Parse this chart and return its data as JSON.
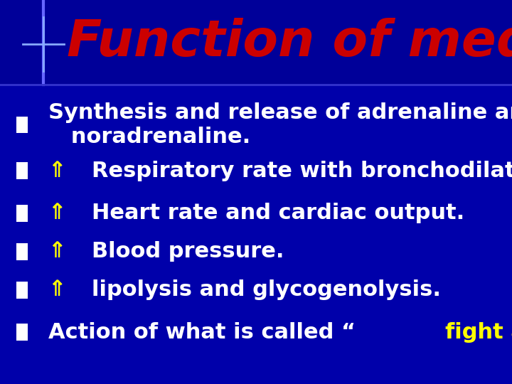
{
  "bg_color": "#0000AA",
  "title": "Function of medulla",
  "title_color": "#CC0000",
  "title_fontsize": 52,
  "bullet_color": "#FFFFFF",
  "bullet_fontsize": 22,
  "arrow_color": "#FFFF00",
  "highlight_color": "#FFFF00",
  "bullet_marker_color": "#FFFFFF",
  "lines": [
    {
      "text": "Synthesis and release of adrenaline and\n   noradrenaline.",
      "arrow": false,
      "highlight": false
    },
    {
      "text": "⇑  Respiratory rate with bronchodilatation.",
      "arrow": true,
      "highlight": false
    },
    {
      "text": "⇑  Heart rate and cardiac output.",
      "arrow": true,
      "highlight": false
    },
    {
      "text": "⇑  Blood pressure.",
      "arrow": true,
      "highlight": false
    },
    {
      "text": "⇑  lipolysis and glycogenolysis.",
      "arrow": true,
      "highlight": false
    },
    {
      "text": "Action of what is called “fight and flight”",
      "arrow": false,
      "highlight": true
    }
  ],
  "figsize": [
    7.2,
    5.4
  ],
  "dpi": 100
}
